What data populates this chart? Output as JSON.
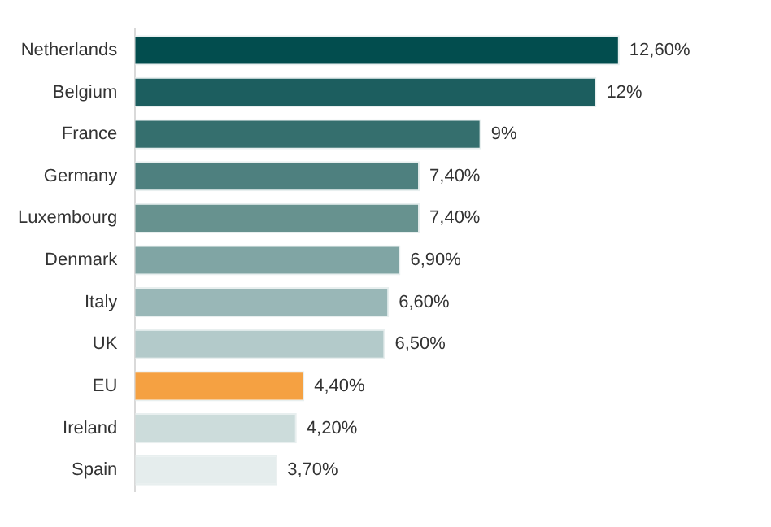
{
  "chart_data": {
    "type": "bar",
    "orientation": "horizontal",
    "categories": [
      "Netherlands",
      "Belgium",
      "France",
      "Germany",
      "Luxembourg",
      "Denmark",
      "Italy",
      "UK",
      "EU",
      "Ireland",
      "Spain"
    ],
    "values": [
      12.6,
      12,
      9,
      7.4,
      7.4,
      6.9,
      6.6,
      6.5,
      4.4,
      4.2,
      3.7
    ],
    "colors": [
      "#024d4e",
      "#1c5e5f",
      "#356f6e",
      "#4e807f",
      "#67928f",
      "#80a5a4",
      "#99b7b7",
      "#b3caca",
      "#f5a142",
      "#ccdcdb",
      "#e5eded"
    ],
    "value_labels": [
      "12,60%",
      "12%",
      "9%",
      "7,40%",
      "7,40%",
      "6,90%",
      "6,60%",
      "6,50%",
      "4,40%",
      "4,20%",
      "3,70%"
    ],
    "data_labels": true,
    "grid": false,
    "legend": false
  }
}
